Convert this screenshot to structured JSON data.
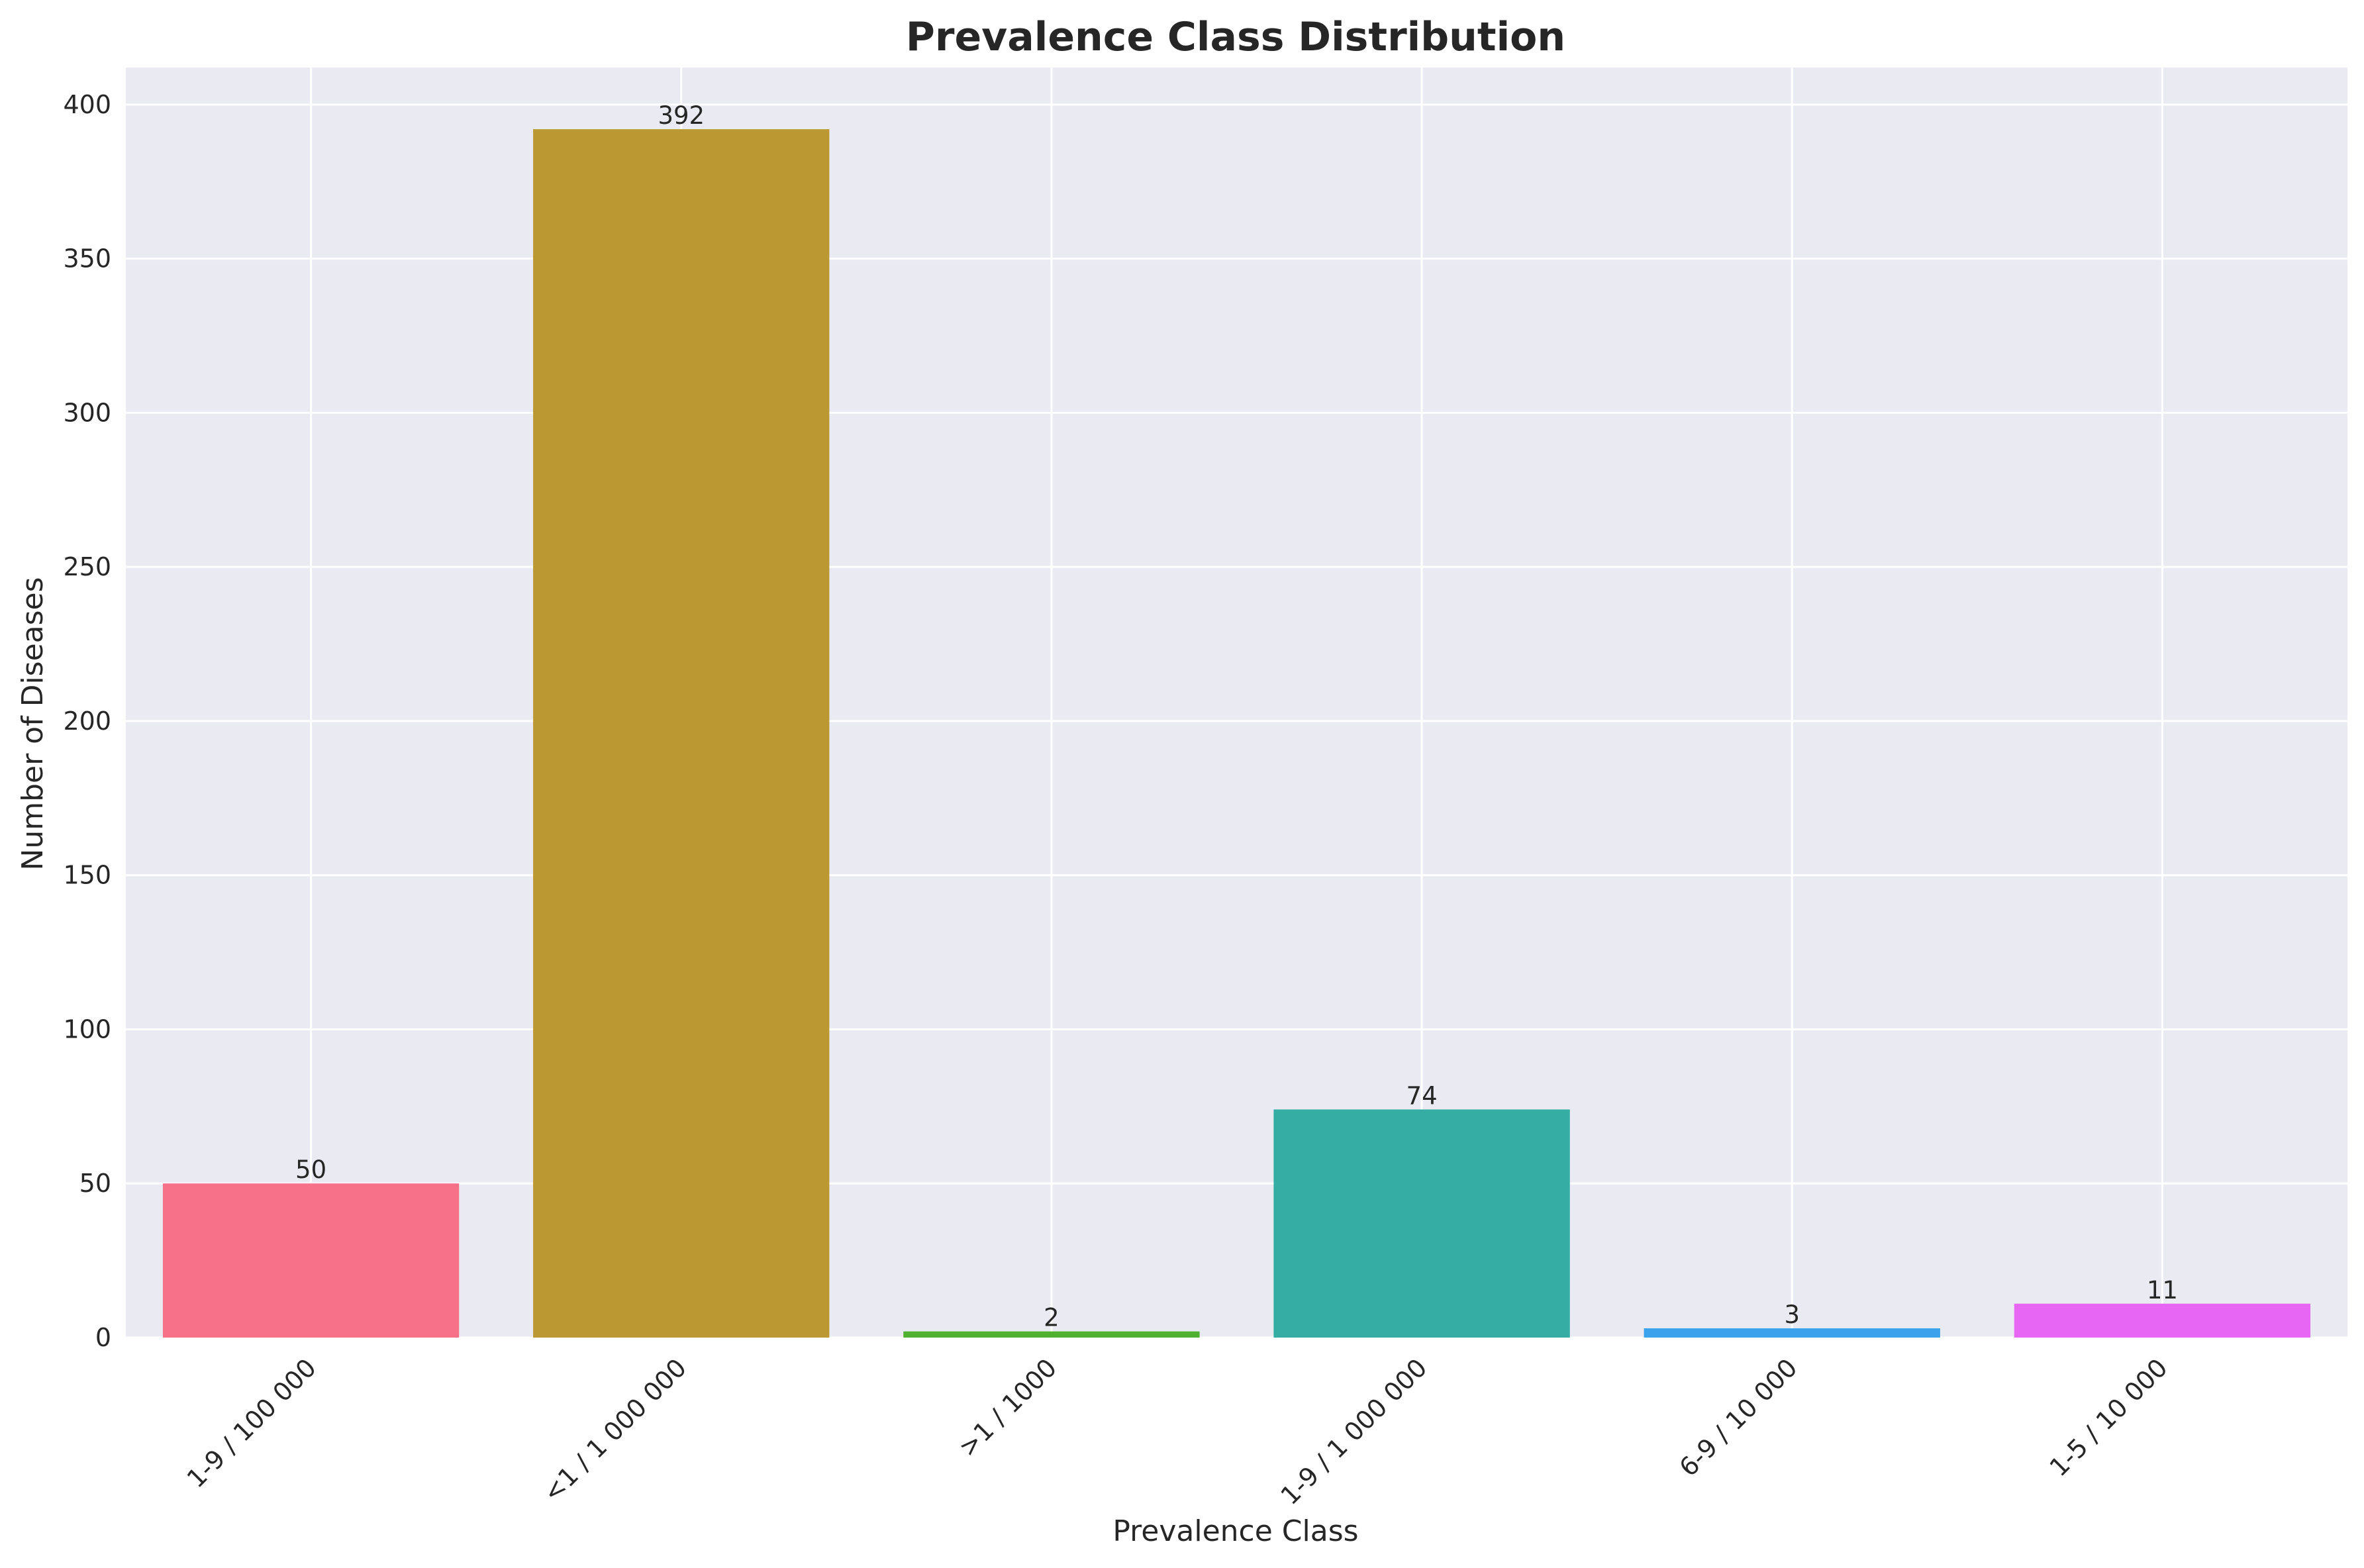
{
  "chart_data": {
    "type": "bar",
    "title": "Prevalence Class Distribution",
    "xlabel": "Prevalence Class",
    "ylabel": "Number of Diseases",
    "categories": [
      "1-9 / 100 000",
      "<1 / 1 000 000",
      ">1 / 1000",
      "1-9 / 1 000 000",
      "6-9 / 10 000",
      "1-5 / 10 000"
    ],
    "values": [
      50,
      392,
      2,
      74,
      3,
      11
    ],
    "colors": [
      "#f77189",
      "#bb9832",
      "#50b131",
      "#36ada4",
      "#3ba3ec",
      "#e866f4"
    ],
    "data_labels": [
      "50",
      "392",
      "2",
      "74",
      "3",
      "11"
    ],
    "ylim": [
      0,
      412
    ],
    "yticks": [
      0,
      50,
      100,
      150,
      200,
      250,
      300,
      350,
      400
    ],
    "ytick_labels": [
      "0",
      "50",
      "100",
      "150",
      "200",
      "250",
      "300",
      "350",
      "400"
    ],
    "grid": true,
    "xtick_rotation_deg": 45,
    "style": {
      "plot_background": "#eaeaf2",
      "grid_color": "#ffffff",
      "text_color": "#262626"
    }
  }
}
